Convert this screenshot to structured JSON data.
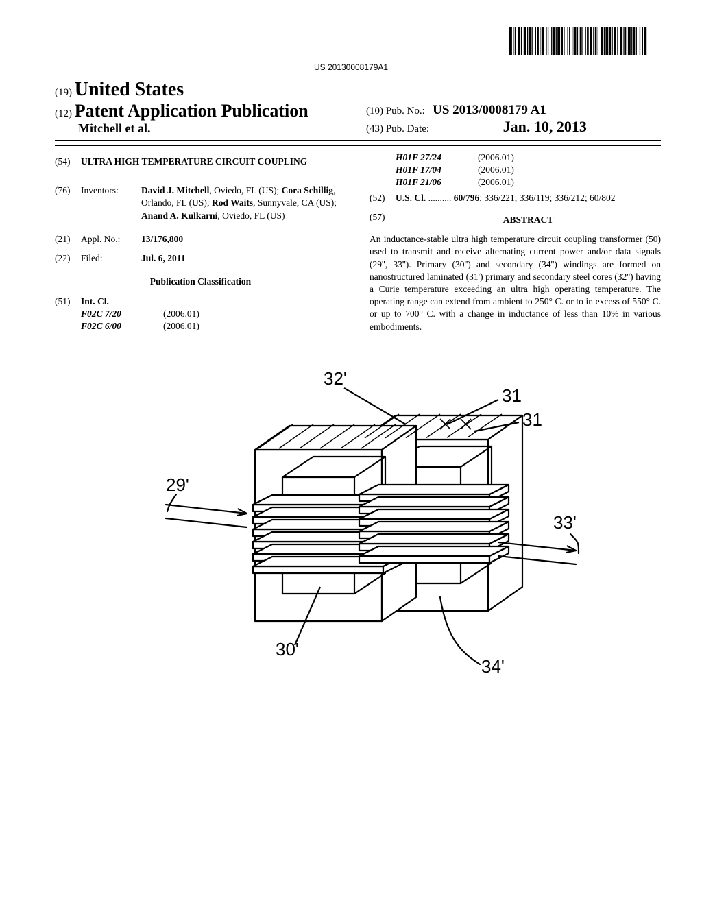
{
  "barcode": {
    "number": "US 20130008179A1",
    "bars": [
      3,
      1,
      1,
      1,
      1,
      3,
      2,
      1,
      1,
      2,
      3,
      1,
      1,
      1,
      2,
      1,
      1,
      3,
      1,
      1,
      2,
      1,
      1,
      1,
      3,
      2,
      1,
      1,
      1,
      3,
      1,
      1,
      2,
      1,
      1,
      1,
      3,
      1,
      2,
      1,
      1,
      3,
      1,
      1,
      1,
      2,
      1,
      1,
      3,
      1,
      1,
      2,
      1,
      1,
      1,
      3,
      1,
      1,
      2,
      1,
      3,
      1,
      1,
      1,
      2,
      1,
      1,
      3,
      2,
      1,
      1,
      1,
      3,
      1,
      2,
      1,
      1,
      1,
      3,
      1,
      1,
      2,
      3,
      1,
      1,
      1,
      1,
      2,
      3,
      1,
      1,
      1,
      2,
      1,
      1,
      3,
      1,
      2,
      1,
      1,
      3
    ]
  },
  "header": {
    "country_code": "(19)",
    "country": "United States",
    "kind_code": "(12)",
    "pub_type": "Patent Application Publication",
    "authors_label": "Mitchell et al.",
    "pubno_code": "(10)",
    "pubno_label": "Pub. No.:",
    "pubno": "US 2013/0008179 A1",
    "pubdate_code": "(43)",
    "pubdate_label": "Pub. Date:",
    "pubdate": "Jan. 10, 2013"
  },
  "left": {
    "title_code": "(54)",
    "title": "ULTRA HIGH TEMPERATURE CIRCUIT COUPLING",
    "inventors_code": "(76)",
    "inventors_label": "Inventors:",
    "inventors_html": "David J. Mitchell|, Oviedo, FL (US); |Cora Schillig|, Orlando, FL (US); |Rod Waits|, Sunnyvale, CA (US); |Anand A. Kulkarni|, Oviedo, FL (US)",
    "inventors": [
      {
        "name": "David J. Mitchell",
        "rest": ", Oviedo, FL (US); "
      },
      {
        "name": "Cora Schillig",
        "rest": ", Orlando, FL (US); "
      },
      {
        "name": "Rod Waits",
        "rest": ", Sunnyvale, CA (US); "
      },
      {
        "name": "Anand A. Kulkarni",
        "rest": ", Oviedo, FL (US)"
      }
    ],
    "applno_code": "(21)",
    "applno_label": "Appl. No.:",
    "applno": "13/176,800",
    "filed_code": "(22)",
    "filed_label": "Filed:",
    "filed": "Jul. 6, 2011",
    "pubclass_heading": "Publication Classification",
    "intcl_code": "(51)",
    "intcl_label": "Int. Cl.",
    "intcl": [
      {
        "c": "F02C 7/20",
        "y": "(2006.01)"
      },
      {
        "c": "F02C 6/00",
        "y": "(2006.01)"
      }
    ]
  },
  "right": {
    "intcl_cont": [
      {
        "c": "H01F 27/24",
        "y": "(2006.01)"
      },
      {
        "c": "H01F 17/04",
        "y": "(2006.01)"
      },
      {
        "c": "H01F 21/06",
        "y": "(2006.01)"
      }
    ],
    "uscl_code": "(52)",
    "uscl_label": "U.S. Cl.",
    "uscl_dots": " .......... ",
    "uscl_lead": "60/796",
    "uscl_rest": "; 336/221; 336/119; 336/212; 60/802",
    "abstract_code": "(57)",
    "abstract_head": "ABSTRACT",
    "abstract": "An inductance-stable ultra high temperature circuit coupling transformer (50) used to transmit and receive alternating current power and/or data signals (29'', 33''). Primary (30'') and secondary (34'') windings are formed on nanostructured laminated (31') primary and secondary steel cores (32'') having a Curie temperature exceeding an ultra high operating temperature. The operating range can extend from ambient to 250° C. or to in excess of 550° C. or up to 700° C. with a change in inductance of less than 10% in various embodiments."
  },
  "figure": {
    "labels": {
      "32p": "32'",
      "31a": "31",
      "31b": "31",
      "29p": "29'",
      "33p": "33'",
      "30p": "30'",
      "34p": "34'"
    },
    "stroke": "#000000",
    "stroke_width": 2.2,
    "font_size": 26
  }
}
